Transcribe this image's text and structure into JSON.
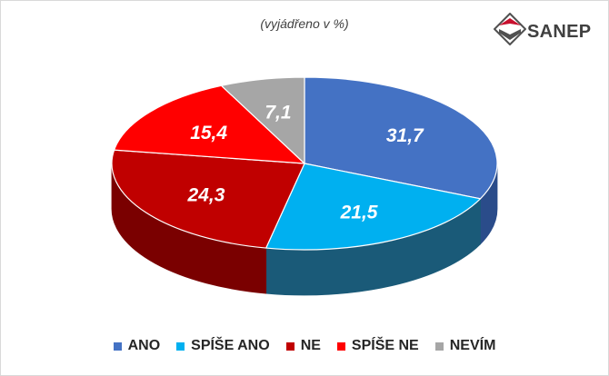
{
  "subtitle": "(vyjádřeno v %)",
  "logo": {
    "text": "SANEP",
    "colors": {
      "red": "#c8102e",
      "gray": "#505050"
    }
  },
  "chart_data": {
    "type": "pie",
    "style": "3d",
    "categories": [
      "ANO",
      "SPÍŠE ANO",
      "NE",
      "SPÍŠE NE",
      "NEVÍM"
    ],
    "values": [
      31.7,
      21.5,
      24.3,
      15.4,
      7.1
    ],
    "value_labels": [
      "31,7",
      "21,5",
      "24,3",
      "15,4",
      "7,1"
    ],
    "colors": [
      "#4472c4",
      "#00b0f0",
      "#c00000",
      "#ff0000",
      "#a6a6a6"
    ],
    "side_colors": [
      "#2a4c8a",
      "#1a5a78",
      "#7a0000",
      "#a00000",
      "#6e6e6e"
    ],
    "legend_position": "bottom"
  }
}
